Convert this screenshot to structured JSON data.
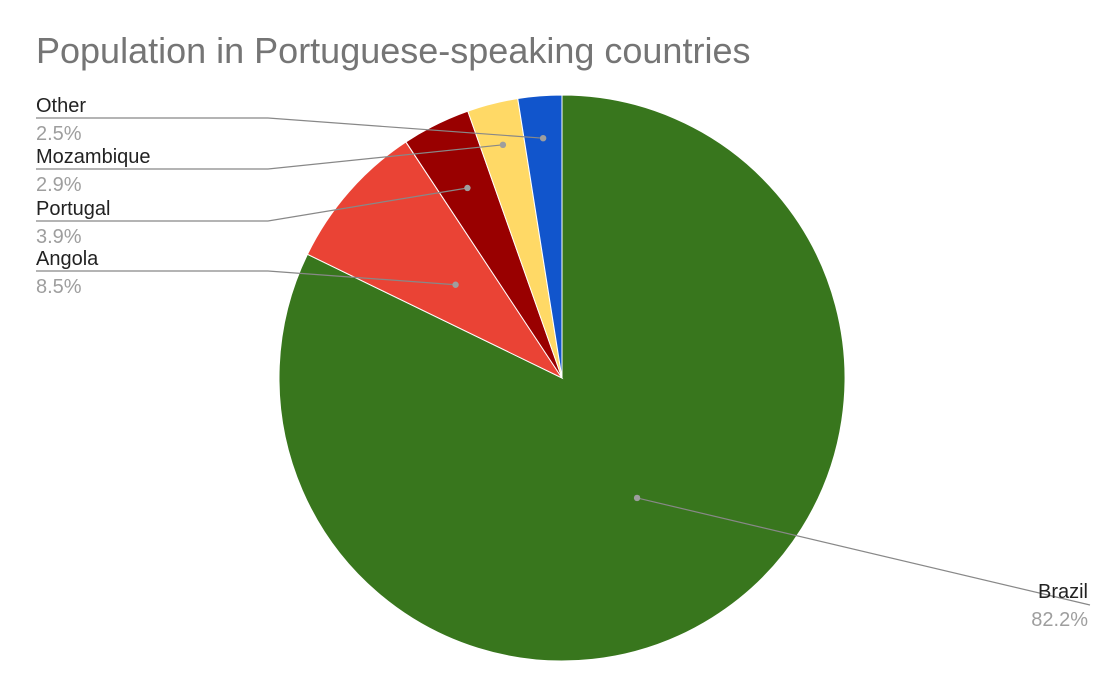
{
  "chart_data": {
    "type": "pie",
    "title": "Population in Portuguese-speaking countries",
    "slices": [
      {
        "label": "Brazil",
        "value": 82.2,
        "display": "82.2%",
        "color": "#38761d"
      },
      {
        "label": "Angola",
        "value": 8.5,
        "display": "8.5%",
        "color": "#ea4335"
      },
      {
        "label": "Portugal",
        "value": 3.9,
        "display": "3.9%",
        "color": "#990000"
      },
      {
        "label": "Mozambique",
        "value": 2.9,
        "display": "2.9%",
        "color": "#ffd966"
      },
      {
        "label": "Other",
        "value": 2.5,
        "display": "2.5%",
        "color": "#1155cc"
      }
    ],
    "start_angle_deg": 0,
    "direction": "clockwise",
    "legend": "none",
    "labels": "outside-with-leader-lines"
  }
}
